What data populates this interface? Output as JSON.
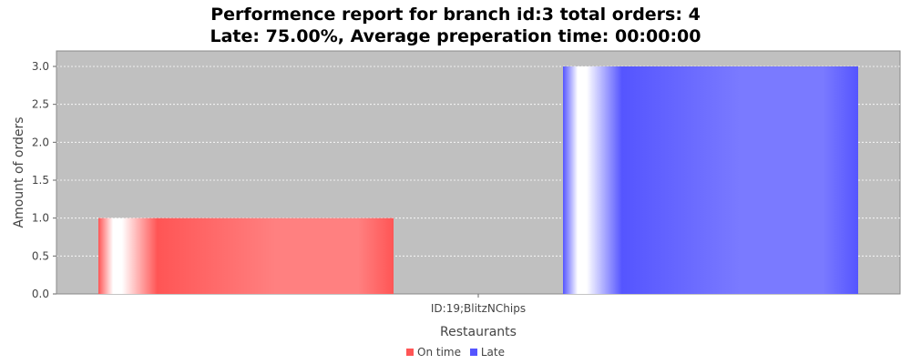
{
  "chart_data": {
    "type": "bar",
    "title_lines": [
      "Performence report for branch id:3 total orders: 4",
      "Late: 75.00%, Average preperation time: 00:00:00"
    ],
    "categories": [
      "ID:19;BlitzNChips"
    ],
    "series": [
      {
        "name": "On time",
        "values": [
          1.0
        ],
        "color": "#ff5555"
      },
      {
        "name": "Late",
        "values": [
          3.0
        ],
        "color": "#5555ff"
      }
    ],
    "xlabel": "Restaurants",
    "ylabel": "Amount of orders",
    "ylim": [
      0,
      3.0
    ],
    "yticks": [
      "0.0",
      "0.5",
      "1.0",
      "1.5",
      "2.0",
      "2.5",
      "3.0"
    ],
    "grid": true,
    "legend_position": "bottom",
    "plot_background": "#c0c0c0"
  }
}
